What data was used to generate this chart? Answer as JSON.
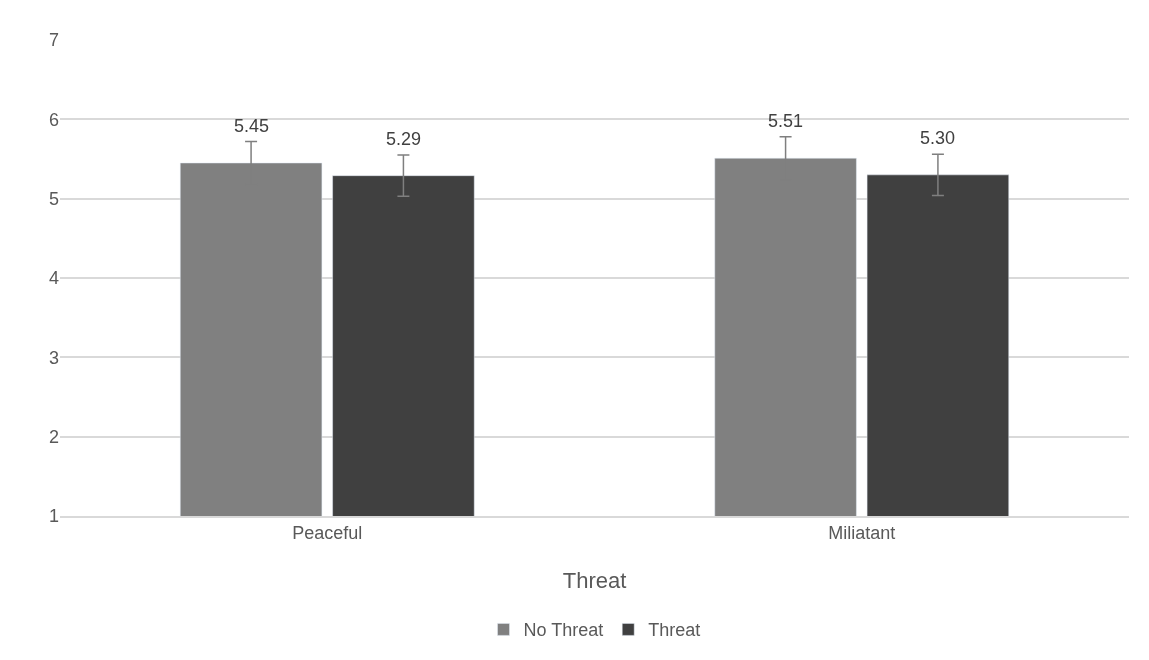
{
  "chart_data": {
    "type": "bar",
    "xlabel": "Threat",
    "categories": [
      "Peaceful",
      "Miliatant"
    ],
    "series": [
      {
        "name": "No Threat",
        "color": "#808080",
        "values": [
          5.45,
          5.51
        ],
        "errors": [
          0.27,
          0.27
        ],
        "value_labels": [
          "5.45",
          "5.51"
        ]
      },
      {
        "name": "Threat",
        "color": "#404040",
        "values": [
          5.29,
          5.3
        ],
        "errors": [
          0.26,
          0.26
        ],
        "value_labels": [
          "5.29",
          "5.30"
        ]
      }
    ],
    "ylim": [
      1,
      7
    ],
    "yticks": [
      1,
      2,
      3,
      4,
      5,
      6,
      7
    ],
    "grid": "y",
    "legend": "bottom"
  }
}
